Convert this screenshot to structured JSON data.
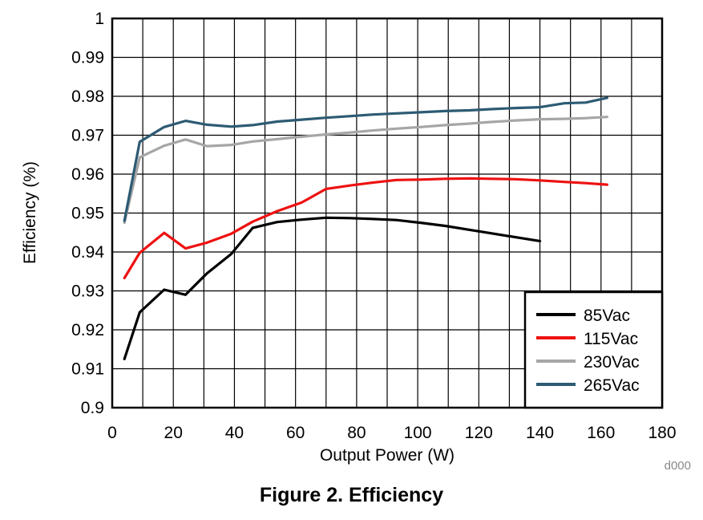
{
  "caption": "Figure 2. Efficiency",
  "chart_data": {
    "type": "line",
    "xlabel": "Output Power (W)",
    "ylabel": "Efficiency (%)",
    "xlim": [
      0,
      180
    ],
    "ylim": [
      0.9,
      1
    ],
    "xticks": [
      0,
      20,
      40,
      60,
      80,
      100,
      120,
      140,
      160,
      180
    ],
    "yticks": [
      0.9,
      0.91,
      0.92,
      0.93,
      0.94,
      0.95,
      0.96,
      0.97,
      0.98,
      0.99,
      1
    ],
    "ytick_labels": [
      "0.9",
      "0.91",
      "0.92",
      "0.93",
      "0.94",
      "0.95",
      "0.96",
      "0.97",
      "0.98",
      "0.99",
      "1"
    ],
    "grid": true,
    "legend_position": "bottom-right",
    "code": "d000",
    "series": [
      {
        "name": "85Vac",
        "color": "#000000",
        "x": [
          4,
          9,
          17,
          24,
          31,
          39,
          46,
          54,
          62,
          70,
          78,
          85,
          93,
          101,
          109,
          117,
          124,
          132,
          140
        ],
        "y": [
          0.9125,
          0.9245,
          0.9303,
          0.929,
          0.9345,
          0.9395,
          0.9462,
          0.9477,
          0.9483,
          0.9488,
          0.9487,
          0.9485,
          0.9482,
          0.9475,
          0.9467,
          0.9457,
          0.9448,
          0.9438,
          0.9428
        ]
      },
      {
        "name": "115Vac",
        "color": "#ee1111",
        "x": [
          4,
          9,
          17,
          24,
          31,
          39,
          46,
          54,
          62,
          70,
          78,
          85,
          93,
          101,
          109,
          117,
          124,
          132,
          140,
          148,
          155,
          162
        ],
        "y": [
          0.9333,
          0.9398,
          0.9449,
          0.9409,
          0.9424,
          0.9447,
          0.9478,
          0.9505,
          0.9527,
          0.9562,
          0.9571,
          0.9578,
          0.9585,
          0.9586,
          0.9588,
          0.9589,
          0.9588,
          0.9587,
          0.9584,
          0.958,
          0.9577,
          0.9573
        ]
      },
      {
        "name": "230Vac",
        "color": "#a6a6a6",
        "x": [
          4,
          9,
          17,
          24,
          31,
          39,
          46,
          54,
          62,
          70,
          78,
          85,
          93,
          101,
          109,
          117,
          124,
          132,
          140,
          148,
          155,
          162
        ],
        "y": [
          0.9475,
          0.9643,
          0.9673,
          0.9689,
          0.9672,
          0.9675,
          0.9684,
          0.969,
          0.9696,
          0.9702,
          0.9707,
          0.9712,
          0.9717,
          0.9721,
          0.9726,
          0.973,
          0.9734,
          0.9738,
          0.9741,
          0.9742,
          0.9744,
          0.9747
        ]
      },
      {
        "name": "265Vac",
        "color": "#2d5b73",
        "x": [
          4,
          9,
          17,
          24,
          31,
          39,
          46,
          54,
          62,
          70,
          78,
          85,
          93,
          101,
          109,
          117,
          124,
          132,
          140,
          148,
          155,
          162
        ],
        "y": [
          0.948,
          0.9683,
          0.9721,
          0.9737,
          0.9727,
          0.9722,
          0.9726,
          0.9735,
          0.974,
          0.9745,
          0.9749,
          0.9753,
          0.9756,
          0.9759,
          0.9762,
          0.9764,
          0.9767,
          0.977,
          0.9772,
          0.9782,
          0.9784,
          0.9796
        ]
      }
    ]
  }
}
